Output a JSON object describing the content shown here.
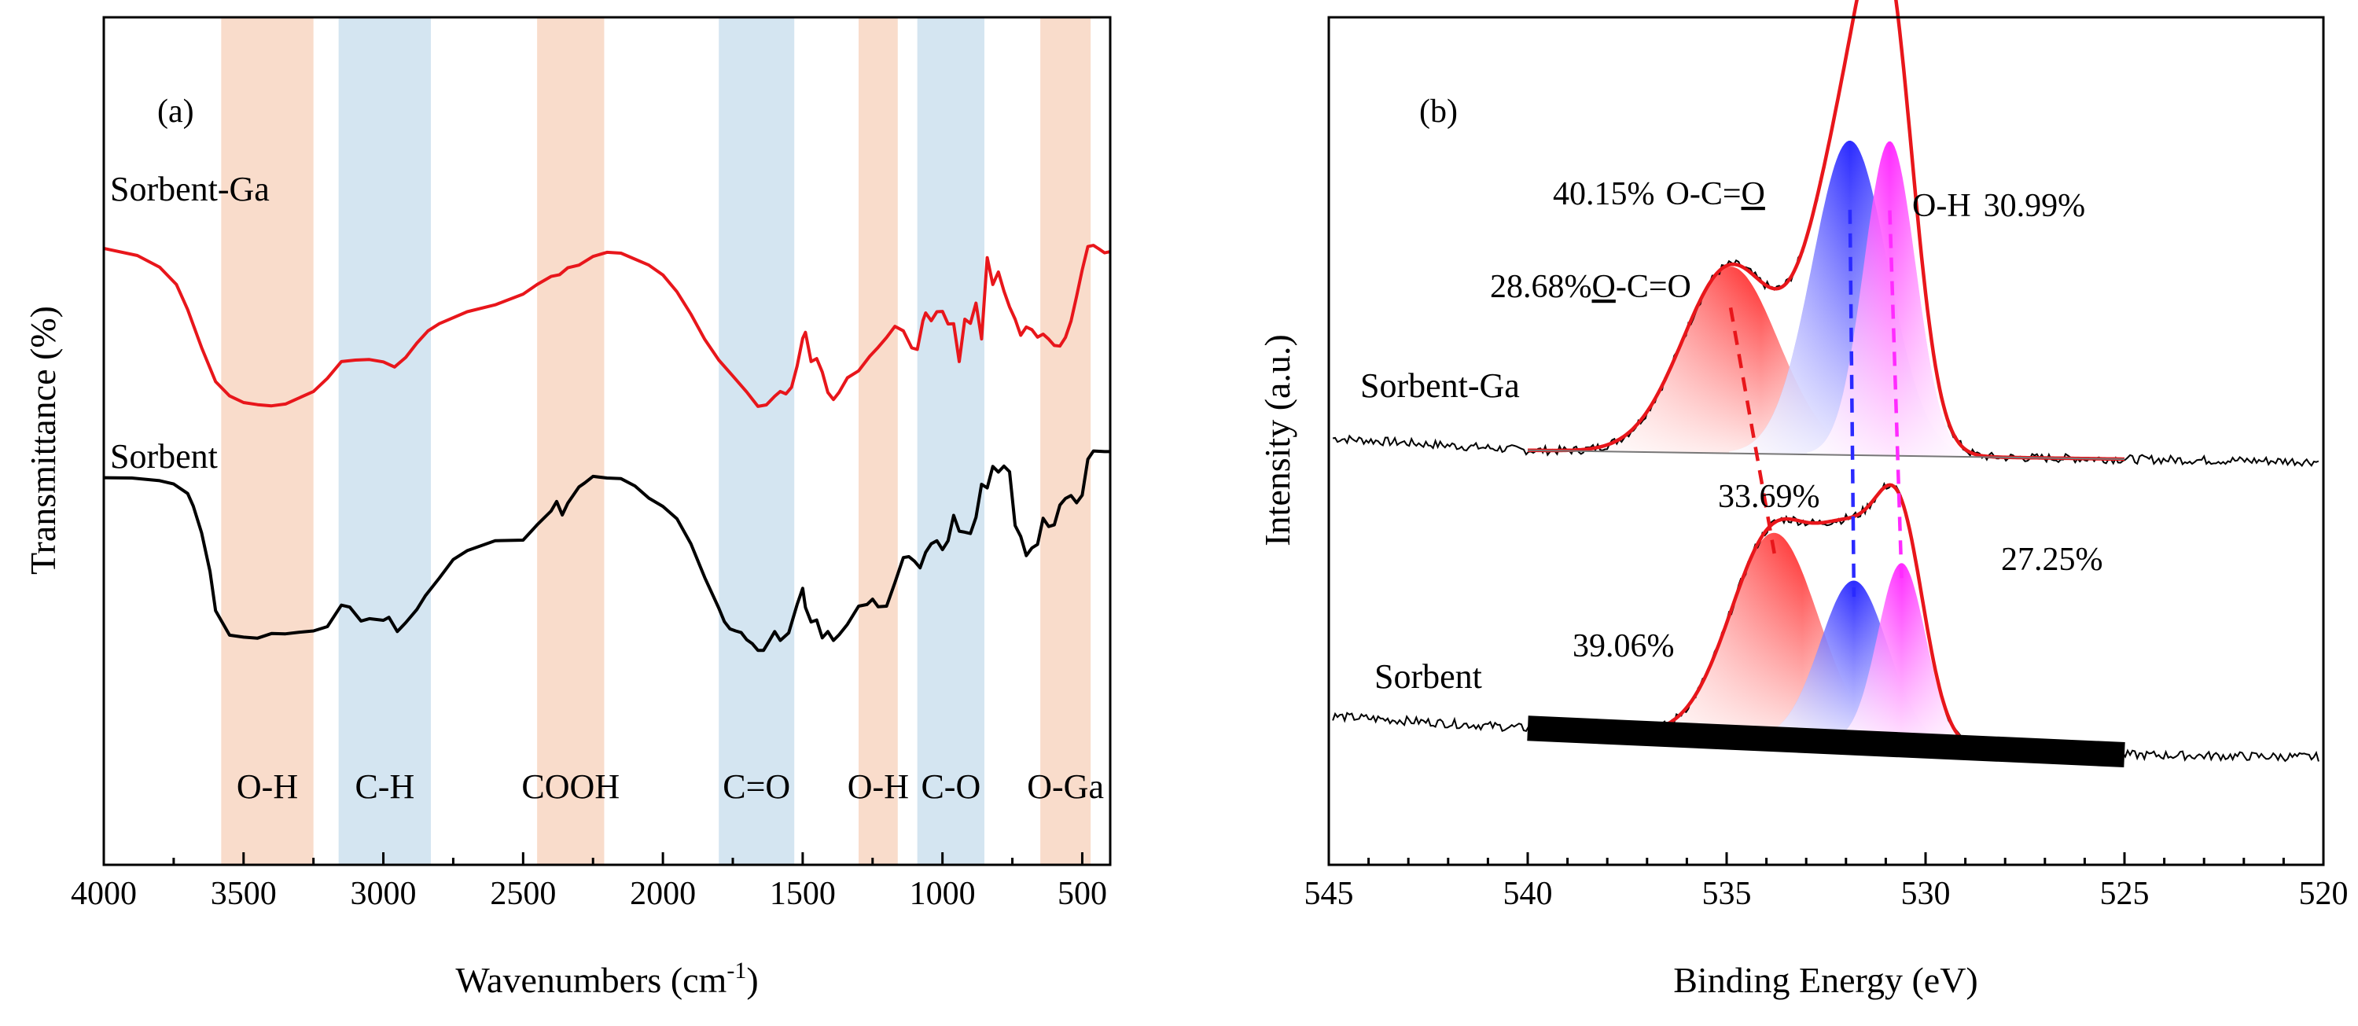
{
  "chart_data": [
    {
      "type": "line",
      "panel_label": "(a)",
      "xlabel": "Wavenumbers (cm",
      "xlabel_sup": "-1",
      "xlabel_end": ")",
      "ylabel": "Transmittance (%)",
      "xlim": [
        4000,
        400
      ],
      "ylim": [
        0,
        100
      ],
      "x_ticks": [
        "4000",
        "3500",
        "3000",
        "2500",
        "2000",
        "1500",
        "1000",
        "500"
      ],
      "x_tick_values": [
        4000,
        3500,
        3000,
        2500,
        2000,
        1500,
        1000,
        500
      ],
      "bands": [
        {
          "label": "O-H",
          "from": 3580,
          "to": 3250,
          "color": "#f9dccb"
        },
        {
          "label": "C-H",
          "from": 3160,
          "to": 2830,
          "color": "#d4e5f1"
        },
        {
          "label": "COOH",
          "from": 2450,
          "to": 2210,
          "color": "#f9dccb"
        },
        {
          "label": "C=O",
          "from": 1800,
          "to": 1530,
          "color": "#d4e5f1"
        },
        {
          "label": "O-H",
          "from": 1300,
          "to": 1160,
          "color": "#f9dccb"
        },
        {
          "label": "C-O",
          "from": 1090,
          "to": 850,
          "color": "#d4e5f1"
        },
        {
          "label": "O-Ga",
          "from": 650,
          "to": 470,
          "color": "#f9dccb"
        }
      ],
      "series": [
        {
          "name": "Sorbent-Ga",
          "color": "#e8161b",
          "x": [
            4000,
            3880,
            3800,
            3740,
            3700,
            3650,
            3600,
            3550,
            3500,
            3450,
            3400,
            3350,
            3300,
            3250,
            3200,
            3150,
            3100,
            3050,
            3000,
            2960,
            2920,
            2880,
            2840,
            2800,
            2700,
            2600,
            2500,
            2450,
            2400,
            2370,
            2340,
            2300,
            2250,
            2200,
            2150,
            2100,
            2050,
            2000,
            1950,
            1900,
            1850,
            1800,
            1750,
            1700,
            1660,
            1630,
            1600,
            1580,
            1560,
            1540,
            1520,
            1500,
            1490,
            1470,
            1450,
            1430,
            1410,
            1390,
            1370,
            1340,
            1300,
            1260,
            1230,
            1200,
            1170,
            1140,
            1110,
            1090,
            1070,
            1060,
            1040,
            1020,
            1000,
            980,
            960,
            940,
            920,
            900,
            880,
            860,
            840,
            820,
            800,
            780,
            760,
            740,
            720,
            700,
            680,
            660,
            640,
            620,
            600,
            580,
            560,
            540,
            520,
            500,
            480,
            460,
            440,
            420,
            400
          ],
          "y": [
            86.6,
            84.2,
            80.3,
            74.5,
            66.1,
            53.4,
            42.0,
            37.2,
            35.0,
            34.3,
            33.9,
            34.5,
            36.6,
            38.7,
            43.1,
            48.7,
            49.2,
            49.4,
            48.6,
            46.9,
            50.1,
            54.9,
            59.0,
            61.4,
            65.4,
            67.7,
            71.3,
            74.5,
            77.2,
            77.8,
            80.1,
            81.0,
            83.9,
            85.3,
            85.0,
            83.0,
            81.0,
            77.7,
            72.1,
            64.6,
            56.1,
            49.2,
            43.9,
            38.5,
            33.7,
            34.2,
            37.1,
            38.7,
            37.9,
            40.1,
            47.2,
            56.5,
            58.5,
            48.7,
            49.7,
            45.2,
            38.4,
            36.0,
            38.4,
            43.3,
            45.6,
            50.5,
            53.5,
            56.8,
            60.5,
            59.0,
            53.3,
            52.8,
            62.4,
            65.0,
            62.4,
            65.4,
            65.5,
            61.3,
            61.4,
            48.7,
            62.9,
            61.5,
            68.3,
            56.3,
            83.5,
            74.5,
            78.7,
            72.3,
            67.0,
            62.9,
            57.5,
            60.3,
            59.4,
            56.9,
            57.9,
            56.2,
            54.1,
            53.9,
            56.8,
            62.3,
            70.6,
            79.4,
            87.2,
            87.6,
            86.4,
            85.1,
            85.5
          ]
        },
        {
          "name": "Sorbent",
          "color": "#000000",
          "x": [
            4000,
            3900,
            3800,
            3750,
            3700,
            3680,
            3650,
            3620,
            3600,
            3550,
            3500,
            3450,
            3400,
            3350,
            3300,
            3250,
            3200,
            3150,
            3120,
            3080,
            3050,
            3000,
            2980,
            2950,
            2920,
            2880,
            2850,
            2800,
            2750,
            2700,
            2600,
            2500,
            2450,
            2400,
            2380,
            2360,
            2340,
            2300,
            2280,
            2250,
            2200,
            2150,
            2100,
            2050,
            2000,
            1950,
            1900,
            1850,
            1800,
            1780,
            1760,
            1740,
            1720,
            1700,
            1680,
            1660,
            1640,
            1620,
            1600,
            1580,
            1550,
            1520,
            1500,
            1490,
            1470,
            1450,
            1430,
            1410,
            1390,
            1370,
            1340,
            1300,
            1270,
            1250,
            1230,
            1200,
            1170,
            1140,
            1120,
            1100,
            1080,
            1060,
            1040,
            1020,
            1000,
            980,
            960,
            940,
            920,
            900,
            880,
            860,
            840,
            820,
            800,
            780,
            760,
            740,
            720,
            700,
            680,
            660,
            640,
            620,
            600,
            580,
            560,
            540,
            520,
            500,
            480,
            460,
            440,
            420,
            400
          ],
          "y": [
            85.1,
            85.0,
            84.2,
            83.2,
            80.3,
            76.5,
            68.4,
            56.7,
            44.8,
            37.4,
            36.8,
            36.5,
            37.9,
            37.8,
            38.3,
            38.7,
            40.0,
            46.5,
            45.9,
            41.7,
            42.4,
            41.9,
            42.8,
            38.5,
            41.2,
            45.2,
            49.3,
            54.7,
            60.3,
            63.0,
            66.0,
            66.2,
            70.8,
            75.0,
            77.9,
            73.8,
            77.4,
            82.3,
            83.5,
            85.5,
            85.0,
            84.8,
            82.6,
            78.9,
            76.4,
            72.7,
            65.1,
            54.8,
            45.6,
            41.5,
            39.3,
            38.7,
            38.2,
            36.0,
            34.8,
            32.8,
            32.8,
            35.6,
            38.5,
            35.8,
            38.1,
            46.7,
            51.6,
            45.8,
            41.4,
            42.0,
            36.6,
            38.5,
            35.8,
            37.5,
            40.7,
            46.2,
            46.7,
            48.3,
            46.0,
            46.2,
            53.3,
            60.9,
            61.2,
            59.8,
            57.8,
            62.5,
            65.1,
            66.0,
            63.3,
            66.0,
            73.7,
            68.9,
            68.6,
            68.2,
            73.1,
            83.1,
            82.0,
            88.5,
            86.8,
            88.6,
            86.9,
            70.6,
            67.3,
            61.5,
            63.8,
            64.9,
            72.8,
            70.3,
            70.8,
            76.8,
            78.8,
            79.7,
            77.5,
            79.8,
            90.7,
            93.2,
            93.1,
            93.0,
            93.0
          ]
        }
      ]
    },
    {
      "type": "area",
      "panel_label": "(b)",
      "xlabel": "Binding Energy (eV)",
      "ylabel": "Intensity (a.u.)",
      "xlim": [
        545,
        520
      ],
      "ylim": [
        0,
        100
      ],
      "x_ticks": [
        "545",
        "540",
        "535",
        "530",
        "525",
        "520"
      ],
      "x_tick_values": [
        545,
        540,
        535,
        530,
        525,
        520
      ],
      "series": [
        {
          "name": "Sorbent-Ga",
          "offset": 49,
          "fit_range": [
            540,
            525
          ],
          "components": [
            {
              "label_pct": "28.68%",
              "label_group": "O",
              "label_rest": "-C=O",
              "center": 534.9,
              "height": 19.0,
              "sigma": 1.2,
              "color": "#ff2a2a"
            },
            {
              "label_pct": "40.15%",
              "label_group_pre": "O-C=",
              "label_group": "O",
              "center": 531.9,
              "height": 32.0,
              "sigma": 0.95,
              "color": "#2a2aff"
            },
            {
              "label_pct": "30.99%",
              "label_group": "O-H",
              "center": 530.9,
              "height": 32.0,
              "sigma": 0.65,
              "color": "#ff2aff"
            }
          ]
        },
        {
          "name": "Sorbent",
          "offset": 14,
          "fit_range": [
            540,
            525
          ],
          "components": [
            {
              "label_pct": "39.06%",
              "center": 533.8,
              "height": 21.0,
              "sigma": 1.1,
              "color": "#ff2a2a"
            },
            {
              "label_pct": "33.69%",
              "center": 531.8,
              "height": 16.5,
              "sigma": 0.85,
              "color": "#2a2aff"
            },
            {
              "label_pct": "27.25%",
              "center": 530.6,
              "height": 18.5,
              "sigma": 0.6,
              "color": "#ff2aff"
            }
          ]
        }
      ]
    }
  ]
}
